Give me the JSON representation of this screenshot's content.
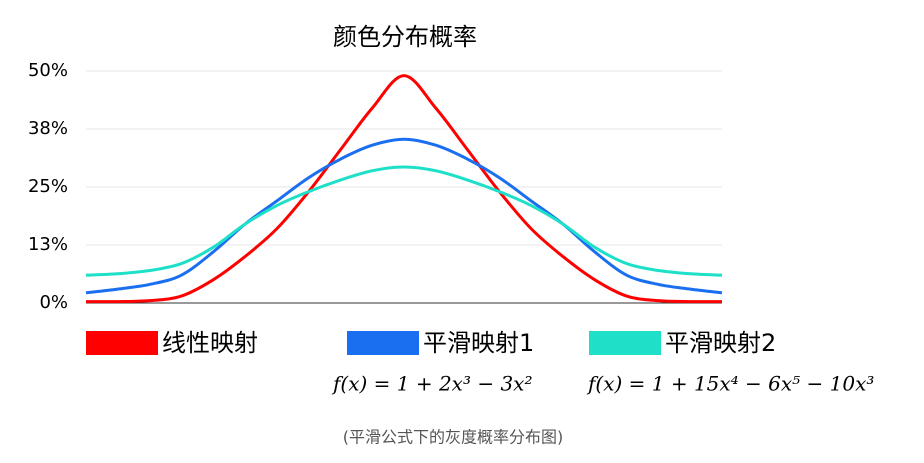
{
  "chart_data": {
    "type": "line",
    "title": "颜色分布概率",
    "x": [
      0,
      1,
      2,
      3,
      4,
      5,
      6,
      7,
      8,
      9,
      10,
      11,
      12,
      13,
      14,
      15,
      16,
      17,
      18,
      19,
      20
    ],
    "xlim": [
      0,
      20
    ],
    "ylim": [
      0,
      50
    ],
    "yticks": [
      {
        "value": 0,
        "label": "0%"
      },
      {
        "value": 12.5,
        "label": "13%"
      },
      {
        "value": 25,
        "label": "25%"
      },
      {
        "value": 37.5,
        "label": "38%"
      },
      {
        "value": 50,
        "label": "50%"
      }
    ],
    "grid": true,
    "series": [
      {
        "name": "线性映射",
        "color": "#ff0000",
        "values": [
          0.3,
          0.3,
          0.5,
          1.5,
          5,
          10,
          16,
          24,
          33,
          42,
          49,
          42,
          33,
          24,
          16,
          10,
          5,
          1.5,
          0.5,
          0.3,
          0.3
        ]
      },
      {
        "name": "平滑映射1",
        "color": "#1a6ff0",
        "values": [
          2.2,
          3,
          4,
          6,
          11,
          17,
          22,
          27,
          31,
          34,
          35.3,
          34,
          31,
          27,
          22,
          17,
          11,
          6,
          4,
          3,
          2.2
        ]
      },
      {
        "name": "平滑映射2",
        "color": "#1ee0c8",
        "values": [
          6,
          6.3,
          7,
          8.5,
          12,
          17,
          21,
          24,
          26.5,
          28.5,
          29.3,
          28.5,
          26.5,
          24,
          21,
          17,
          12,
          8.5,
          7,
          6.3,
          6
        ]
      }
    ],
    "annotations": [
      "f(x) = 1 + 2x³ − 3x²",
      "f(x) = 1 + 15x⁴ − 6x⁵ − 10x³"
    ],
    "caption": "(平滑公式下的灰度概率分布图)"
  }
}
